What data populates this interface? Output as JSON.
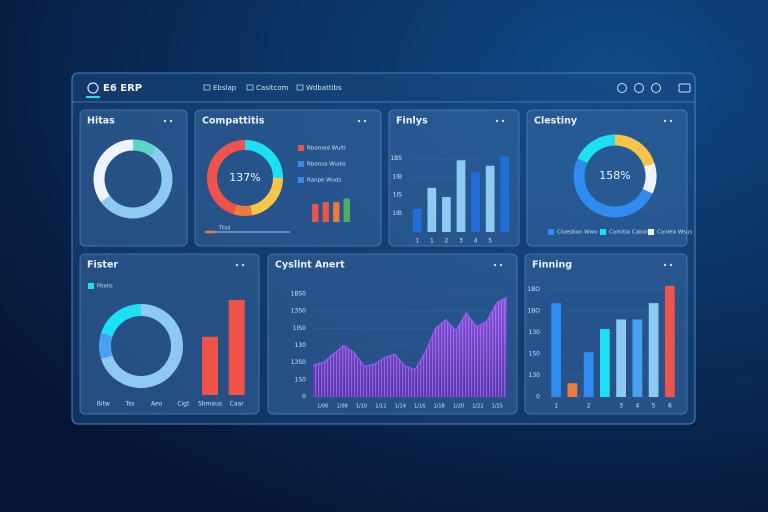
{
  "header": {
    "logo": "E6 ERP",
    "nav": [
      "Ebslap",
      "Casitcom",
      "Wdbattibs"
    ]
  },
  "panels": [
    {
      "title": "Hitas",
      "charts": [
        {
          "type": "donut",
          "values": [
            10,
            55,
            35
          ],
          "colors": [
            "#5fd6c4",
            "#8ec9f2",
            "#eef4fb"
          ]
        }
      ]
    },
    {
      "title": "Compattitis",
      "charts": [
        {
          "type": "donut",
          "center": "137%",
          "values": [
            25,
            22,
            8,
            45
          ],
          "colors": [
            "#1ee0f5",
            "#f7c548",
            "#f07a3a",
            "#f0534a"
          ]
        },
        {
          "type": "legend",
          "items": [
            {
              "label": "Rbomed Wuitl",
              "color": "#f0534a"
            },
            {
              "label": "Rbonsa Wudis",
              "color": "#2f8cf0"
            },
            {
              "label": "Ranpe Wuds",
              "color": "#2f8cf0"
            }
          ]
        },
        {
          "type": "bar",
          "values": [
            20,
            22,
            22,
            26
          ],
          "ylim": [
            0,
            30
          ],
          "colors": [
            "#f0534a",
            "#f0534a",
            "#f07a3a",
            "#4caf6a"
          ]
        },
        {
          "type": "progress",
          "label": "Tilsd"
        }
      ]
    },
    {
      "title": "Finlys",
      "charts": [
        {
          "type": "bar",
          "ylim": [
            0,
            100
          ],
          "yticks": [
            {
              "value": 20,
              "label": "1IB"
            },
            {
              "value": 40,
              "label": "1IS"
            },
            {
              "value": 60,
              "label": "1IB"
            },
            {
              "value": 80,
              "label": "1BS"
            }
          ],
          "categories": [
            "1",
            "1",
            "2",
            "3",
            "4",
            "5",
            null
          ],
          "values": [
            25,
            48,
            38,
            78,
            65,
            72,
            82
          ],
          "colors": [
            "#1f6fd6",
            "#8ec9f2",
            "#8ec9f2",
            "#8ec9f2",
            "#1f6fd6",
            "#8ec9f2",
            "#1f6fd6"
          ]
        }
      ]
    },
    {
      "title": "Clestiny",
      "charts": [
        {
          "type": "donut",
          "center": "158%",
          "values": [
            20,
            12,
            50,
            18
          ],
          "colors": [
            "#f7c548",
            "#eef4fb",
            "#2f8cf0",
            "#1ee0f5"
          ]
        },
        {
          "type": "legend",
          "items": [
            {
              "label": "Ciuesbon Wwo",
              "color": "#2f8cf0"
            },
            {
              "label": "Comitia Cabon",
              "color": "#1ee0f5"
            },
            {
              "label": "Conlea Wsus",
              "color": "#eef4fb"
            }
          ]
        }
      ]
    },
    {
      "title": "Fister",
      "charts": [
        {
          "type": "legend",
          "items": [
            {
              "label": "Fitelis",
              "color": "#1ee0f5"
            }
          ]
        },
        {
          "type": "donut",
          "values": [
            70,
            10,
            20
          ],
          "colors": [
            "#8ec9f2",
            "#4aa0f0",
            "#1ee0f5"
          ]
        },
        {
          "type": "bar",
          "ylim": [
            0,
            100
          ],
          "categories": [
            "Bitw",
            "Tss",
            "Aeo",
            "Cigt",
            "Sbmaus",
            "Caar"
          ],
          "values": [
            null,
            null,
            null,
            null,
            60,
            98
          ],
          "colors": [
            "#f0534a",
            "#f0534a",
            "#f0534a",
            "#f0534a",
            "#f0534a",
            "#f0534a"
          ]
        }
      ]
    },
    {
      "title": "Cyslint Anert",
      "charts": [
        {
          "type": "area",
          "ylim": [
            0,
            120
          ],
          "yticks": [
            0,
            {
              "value": 20,
              "label": "1S0"
            },
            {
              "value": 40,
              "label": "13S0"
            },
            {
              "value": 60,
              "label": "130"
            },
            {
              "value": 80,
              "label": "1IS0"
            },
            {
              "value": 100,
              "label": "13S0"
            },
            {
              "value": 120,
              "label": "1BS0"
            }
          ],
          "values": [
            37,
            40,
            50,
            60,
            52,
            36,
            38,
            46,
            50,
            36,
            32,
            52,
            80,
            90,
            77,
            98,
            82,
            88,
            110,
            116
          ],
          "color": "#9b5cf0",
          "xlabels": [
            "1/06",
            "1/08",
            "1/10",
            "1/12",
            "1/14",
            "1/16",
            "1/18",
            "1/20",
            "1/22",
            "1/25"
          ]
        }
      ]
    },
    {
      "title": "Finning",
      "charts": [
        {
          "type": "bar",
          "ylim": [
            0,
            130
          ],
          "yticks": [
            0,
            {
              "value": 25,
              "label": "130"
            },
            {
              "value": 50,
              "label": "1S0"
            },
            {
              "value": 75,
              "label": "130"
            },
            {
              "value": 100,
              "label": "1BO"
            },
            {
              "value": 125,
              "label": "1BO"
            }
          ],
          "categories": [
            "1",
            null,
            "2",
            null,
            "3",
            "4",
            "5",
            "6"
          ],
          "values": [
            109,
            16,
            52,
            79,
            90,
            90,
            109,
            129
          ],
          "colors": [
            "#2f8cf0",
            "#f07a3a",
            "#2f8cf0",
            "#1ee0f5",
            "#8ec9f2",
            "#4aa0f0",
            "#8ec9f2",
            "#f0534a"
          ]
        }
      ]
    }
  ]
}
